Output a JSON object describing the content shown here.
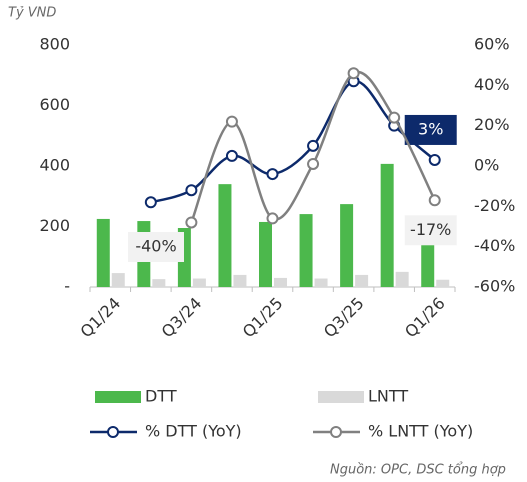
{
  "chart_data": {
    "type": "bar-line",
    "ylabel": "Tỷ VND",
    "source": "Nguồn: OPC, DSC tổng hợp",
    "categories": [
      "Q1/24",
      null,
      "Q3/24",
      null,
      "Q1/25",
      null,
      "Q3/25",
      null,
      "Q1/26"
    ],
    "series": [
      {
        "name": "DTT",
        "type": "bar",
        "color": "#4cb84c",
        "values": [
          225,
          218,
          195,
          340,
          215,
          241,
          274,
          407,
          150
        ]
      },
      {
        "name": "LNTT",
        "type": "bar",
        "color": "#d9d9d9",
        "values": [
          46,
          26,
          28,
          40,
          30,
          28,
          40,
          50,
          24
        ]
      },
      {
        "name": "% DTT (YoY)",
        "type": "line",
        "axis": "y2",
        "color": "#0d2a6b",
        "values": [
          null,
          -18,
          -12,
          5,
          -4,
          10,
          42,
          20,
          3
        ],
        "value_labels": [
          null,
          null,
          null,
          null,
          null,
          null,
          null,
          null,
          "3%"
        ]
      },
      {
        "name": "% LNTT (YoY)",
        "type": "line",
        "axis": "y2",
        "color": "#808080",
        "values": [
          null,
          null,
          -28,
          22,
          -26,
          1,
          46,
          24,
          -17
        ],
        "value_labels": [
          null,
          null,
          null,
          null,
          null,
          null,
          null,
          null,
          "-17%"
        ]
      }
    ],
    "annotations": [
      "-40%"
    ],
    "ylim": [
      0,
      800
    ],
    "yticks": [
      {
        "value": 0,
        "label": "-"
      },
      200,
      400,
      600,
      800
    ],
    "y2lim": [
      -60,
      60
    ],
    "y2ticks": [
      {
        "value": -60,
        "label": "-60%"
      },
      {
        "value": -40,
        "label": "-40%"
      },
      {
        "value": -20,
        "label": "-20%"
      },
      {
        "value": 0,
        "label": "0%"
      },
      {
        "value": 20,
        "label": "20%"
      },
      {
        "value": 40,
        "label": "40%"
      },
      {
        "value": 60,
        "label": "60%"
      }
    ]
  }
}
